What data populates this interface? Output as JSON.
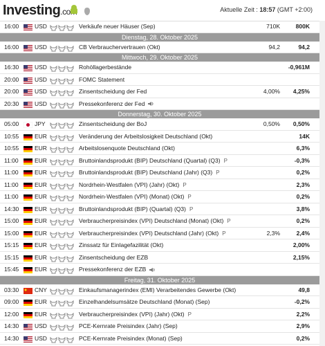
{
  "header": {
    "logo": "Investing",
    "logo_suffix": ".com",
    "time_label": "Aktuelle Zeit :",
    "time": "18:57",
    "timezone": "(GMT +2:00)"
  },
  "sections": [
    {
      "events": [
        {
          "time": "16:00",
          "currency": "USD",
          "event": "Verkäufe neuer Häuser (Sep)",
          "forecast": "710K",
          "previous": "800K"
        }
      ]
    },
    {
      "day": "Dienstag, 28. Oktober 2025",
      "events": [
        {
          "time": "16:00",
          "currency": "USD",
          "event": "CB Verbrauchervertrauen (Okt)",
          "forecast": "94,2",
          "previous": "94,2"
        }
      ]
    },
    {
      "day": "Mittwoch, 29. Oktober 2025",
      "events": [
        {
          "time": "16:30",
          "currency": "USD",
          "event": "Rohöllagerbestände",
          "previous": "-0,961M"
        },
        {
          "time": "20:00",
          "currency": "USD",
          "event": "FOMC Statement"
        },
        {
          "time": "20:00",
          "currency": "USD",
          "event": "Zinsentscheidung der Fed",
          "forecast": "4,00%",
          "previous": "4,25%"
        },
        {
          "time": "20:30",
          "currency": "USD",
          "event": "Pressekonferenz der Fed",
          "speech": true
        }
      ]
    },
    {
      "day": "Donnerstag, 30. Oktober 2025",
      "events": [
        {
          "time": "05:00",
          "currency": "JPY",
          "event": "Zinsentscheidung der BoJ",
          "forecast": "0,50%",
          "previous": "0,50%"
        },
        {
          "time": "10:55",
          "currency": "EUR",
          "event": "Veränderung der Arbeitslosigkeit Deutschland (Okt)",
          "previous": "14K"
        },
        {
          "time": "10:55",
          "currency": "EUR",
          "event": "Arbeitslosenquote Deutschland (Okt)",
          "previous": "6,3%"
        },
        {
          "time": "11:00",
          "currency": "EUR",
          "event": "Bruttoinlandsprodukt (BIP) Deutschland (Quartal) (Q3)",
          "marker": "P",
          "previous": "-0,3%"
        },
        {
          "time": "11:00",
          "currency": "EUR",
          "event": "Bruttoinlandsprodukt (BIP) Deutschland (Jahr) (Q3)",
          "marker": "P",
          "previous": "0,2%"
        },
        {
          "time": "11:00",
          "currency": "EUR",
          "event": "Nordrhein-Westfalen (VPI) (Jahr) (Okt)",
          "marker": "P",
          "previous": "2,3%"
        },
        {
          "time": "11:00",
          "currency": "EUR",
          "event": "Nordrhein-Westfalen (VPI) (Monat) (Okt)",
          "marker": "P",
          "previous": "0,2%"
        },
        {
          "time": "14:30",
          "currency": "EUR",
          "event": "Bruttoinlandsprodukt (BIP) (Quartal) (Q3)",
          "marker": "P",
          "previous": "3,8%"
        },
        {
          "time": "15:00",
          "currency": "EUR",
          "event": "Verbraucherpreisindex (VPI) Deutschland (Monat) (Okt)",
          "marker": "P",
          "previous": "0,2%"
        },
        {
          "time": "15:00",
          "currency": "EUR",
          "event": "Verbraucherpreisindex (VPI) Deutschland (Jahr) (Okt)",
          "marker": "P",
          "forecast": "2,3%",
          "previous": "2,4%"
        },
        {
          "time": "15:15",
          "currency": "EUR",
          "event": "Zinssatz für Einlagefazilität (Okt)",
          "previous": "2,00%"
        },
        {
          "time": "15:15",
          "currency": "EUR",
          "event": "Zinsentscheidung der EZB",
          "previous": "2,15%"
        },
        {
          "time": "15:45",
          "currency": "EUR",
          "event": "Pressekonferenz der EZB",
          "speech": true
        }
      ]
    },
    {
      "day": "Freitag, 31. Oktober 2025",
      "events": [
        {
          "time": "03:30",
          "currency": "CNY",
          "event": "Einkaufsmanagerindex (EMI) Verarbeitendes Gewerbe (Okt)",
          "previous": "49,8"
        },
        {
          "time": "09:00",
          "currency": "EUR",
          "event": "Einzelhandelsumsätze Deutschland (Monat) (Sep)",
          "previous": "-0,2%"
        },
        {
          "time": "12:00",
          "currency": "EUR",
          "event": "Verbraucherpreisindex (VPI) (Jahr) (Okt)",
          "marker": "P",
          "previous": "2,2%"
        },
        {
          "time": "14:30",
          "currency": "USD",
          "event": "PCE-Kernrate Preisindex (Jahr) (Sep)",
          "previous": "2,9%"
        },
        {
          "time": "14:30",
          "currency": "USD",
          "event": "PCE-Kernrate Preisindex (Monat) (Sep)",
          "previous": "0,2%"
        }
      ]
    }
  ]
}
